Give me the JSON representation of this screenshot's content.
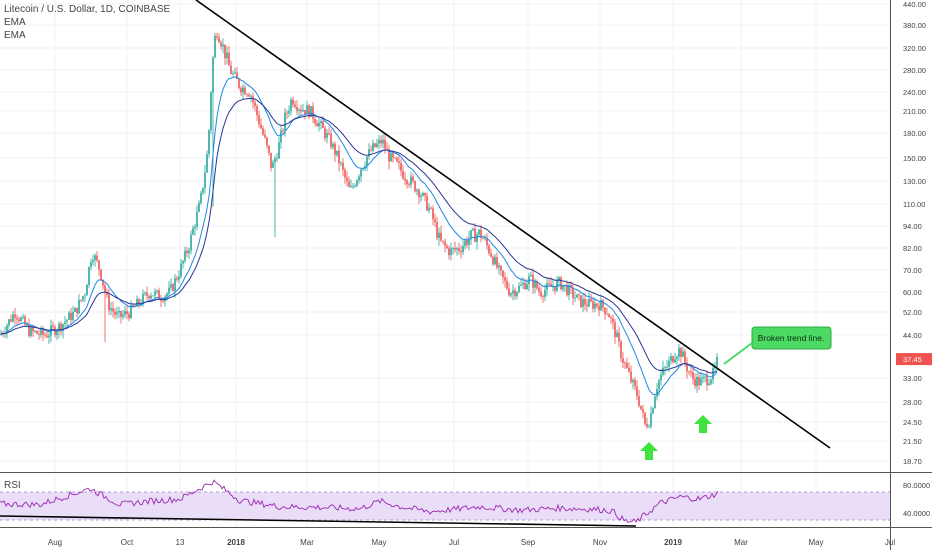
{
  "legend": {
    "title": "Litecoin / U.S. Dollar, 1D, COINBASE",
    "ema1": "EMA",
    "ema2": "EMA"
  },
  "price_badge": "37.45",
  "callout_text": "Broken trend line.",
  "rsi_label": "RSI",
  "colors": {
    "up": "#26a69a",
    "down": "#ef5350",
    "ema_fast": "#1e88e5",
    "ema_slow": "#283593",
    "trendline": "#000000",
    "rsi_line": "#9c27b0",
    "rsi_band": "#e9ddf7",
    "callout_fill": "#4cd964",
    "arrow": "#3fe23f",
    "badge": "#ef5350"
  },
  "chart_data": {
    "type": "candlestick",
    "title": "Litecoin / U.S. Dollar, 1D, COINBASE",
    "x_ticks": [
      "Aug",
      "Oct",
      "13",
      "2018",
      "Mar",
      "May",
      "Jul",
      "Sep",
      "Nov",
      "2019",
      "Mar",
      "May",
      "Jul"
    ],
    "y_scale": "log",
    "y_ticks": [
      "440.00",
      "380.00",
      "320.00",
      "280.00",
      "240.00",
      "210.00",
      "180.00",
      "150.00",
      "130.00",
      "110.00",
      "94.00",
      "82.00",
      "70.00",
      "60.00",
      "52.00",
      "44.00",
      "33.00",
      "28.00",
      "24.50",
      "21.50",
      "18.70"
    ],
    "last_price": 37.45,
    "rsi_ticks": [
      "80.0000",
      "40.0000"
    ],
    "rsi_band": [
      30,
      70
    ],
    "price_path": [
      [
        0,
        44
      ],
      [
        15,
        52
      ],
      [
        30,
        45
      ],
      [
        45,
        44
      ],
      [
        60,
        47
      ],
      [
        75,
        52
      ],
      [
        85,
        60
      ],
      [
        92,
        80
      ],
      [
        100,
        70
      ],
      [
        108,
        55
      ],
      [
        118,
        50
      ],
      [
        130,
        52
      ],
      [
        140,
        56
      ],
      [
        150,
        60
      ],
      [
        160,
        58
      ],
      [
        170,
        60
      ],
      [
        180,
        70
      ],
      [
        190,
        85
      ],
      [
        200,
        110
      ],
      [
        208,
        160
      ],
      [
        212,
        280
      ],
      [
        216,
        370
      ],
      [
        222,
        330
      ],
      [
        230,
        280
      ],
      [
        240,
        250
      ],
      [
        250,
        240
      ],
      [
        258,
        200
      ],
      [
        265,
        170
      ],
      [
        272,
        140
      ],
      [
        278,
        160
      ],
      [
        285,
        200
      ],
      [
        292,
        230
      ],
      [
        300,
        215
      ],
      [
        310,
        210
      ],
      [
        320,
        190
      ],
      [
        330,
        170
      ],
      [
        340,
        145
      ],
      [
        350,
        120
      ],
      [
        360,
        140
      ],
      [
        372,
        160
      ],
      [
        382,
        170
      ],
      [
        390,
        150
      ],
      [
        400,
        140
      ],
      [
        410,
        130
      ],
      [
        420,
        120
      ],
      [
        430,
        105
      ],
      [
        440,
        85
      ],
      [
        450,
        80
      ],
      [
        460,
        82
      ],
      [
        470,
        88
      ],
      [
        480,
        90
      ],
      [
        490,
        80
      ],
      [
        500,
        68
      ],
      [
        510,
        60
      ],
      [
        520,
        62
      ],
      [
        530,
        66
      ],
      [
        540,
        60
      ],
      [
        550,
        62
      ],
      [
        560,
        64
      ],
      [
        570,
        60
      ],
      [
        580,
        56
      ],
      [
        590,
        55
      ],
      [
        600,
        55
      ],
      [
        608,
        52
      ],
      [
        615,
        45
      ],
      [
        622,
        38
      ],
      [
        630,
        33
      ],
      [
        638,
        29
      ],
      [
        645,
        24
      ],
      [
        650,
        25
      ],
      [
        656,
        31
      ],
      [
        662,
        34
      ],
      [
        668,
        36
      ],
      [
        675,
        39
      ],
      [
        680,
        40
      ],
      [
        686,
        36
      ],
      [
        692,
        33
      ],
      [
        700,
        32
      ],
      [
        708,
        33
      ],
      [
        714,
        34
      ],
      [
        718,
        37.45
      ]
    ],
    "rsi_series": [
      [
        0,
        53
      ],
      [
        40,
        52
      ],
      [
        90,
        75
      ],
      [
        120,
        52
      ],
      [
        150,
        57
      ],
      [
        180,
        60
      ],
      [
        213,
        85
      ],
      [
        240,
        58
      ],
      [
        280,
        49
      ],
      [
        320,
        48
      ],
      [
        360,
        46
      ],
      [
        380,
        57
      ],
      [
        400,
        49
      ],
      [
        430,
        42
      ],
      [
        460,
        46
      ],
      [
        480,
        49
      ],
      [
        520,
        44
      ],
      [
        560,
        47
      ],
      [
        600,
        45
      ],
      [
        612,
        43
      ],
      [
        625,
        28
      ],
      [
        636,
        27
      ],
      [
        660,
        54
      ],
      [
        680,
        63
      ],
      [
        700,
        60
      ],
      [
        718,
        68
      ]
    ],
    "annotations": [
      {
        "type": "trendline",
        "label": "descending trend line"
      },
      {
        "type": "callout",
        "text": "Broken trend line."
      },
      {
        "type": "arrow",
        "direction": "up",
        "count": 2
      },
      {
        "type": "rsi_trendline",
        "label": "RSI support line"
      }
    ]
  }
}
